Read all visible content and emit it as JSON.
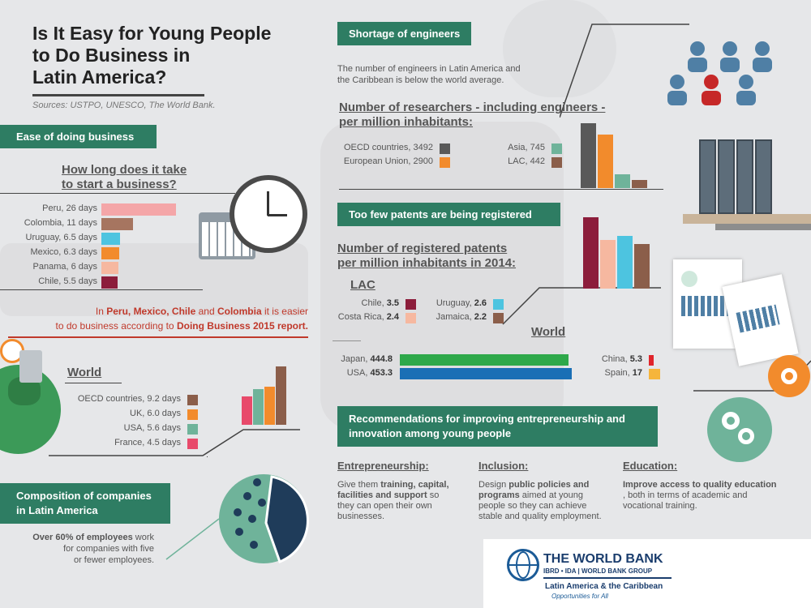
{
  "title": {
    "line1": "Is It Easy for Young People",
    "line2": "to Do Business in",
    "line3": "Latin America?",
    "sources": "Sources: USTPO, UNESCO, The World Bank."
  },
  "ease": {
    "tag": "Ease of doing business",
    "heading1": "How long does it take",
    "heading2": "to start a business?",
    "items": [
      {
        "label": "Peru, 26 days",
        "value": 26,
        "color": "#f4a6a8"
      },
      {
        "label": "Colombia, 11 days",
        "value": 11,
        "color": "#a67560"
      },
      {
        "label": "Uruguay, 6.5 days",
        "value": 6.5,
        "color": "#4dc4e0"
      },
      {
        "label": "Mexico, 6.3 days",
        "value": 6.3,
        "color": "#f28b2c"
      },
      {
        "label": "Panama, 6 days",
        "value": 6,
        "color": "#f6b8a0"
      },
      {
        "label": "Chile, 5.5 days",
        "value": 5.5,
        "color": "#8c1d3b"
      }
    ],
    "note1_pre": "In ",
    "note1_b1": "Peru, Mexico, Chile",
    "note1_mid": " and ",
    "note1_b2": "Colombia",
    "note1_post": " it is easier",
    "note2_pre": "to do business according to ",
    "note2_b": "Doing Business 2015 report."
  },
  "world": {
    "heading": "World",
    "items": [
      {
        "label": "OECD countries, 9.2 days",
        "value": 9.2,
        "color": "#8b5e4a"
      },
      {
        "label": "UK, 6.0 days",
        "value": 6.0,
        "color": "#f28b2c"
      },
      {
        "label": "USA, 5.6 days",
        "value": 5.6,
        "color": "#6fb39a"
      },
      {
        "label": "France, 4.5 days",
        "value": 4.5,
        "color": "#e84a6b"
      }
    ]
  },
  "composition": {
    "tag1": "Composition of companies",
    "tag2": "in Latin America",
    "text1_b": "Over 60% of employees",
    "text1": " work",
    "text2": "for companies with five",
    "text3": "or fewer employees.",
    "share": 60
  },
  "engineers": {
    "tag": "Shortage of engineers",
    "desc1": "The number of engineers in Latin America and",
    "desc2": "the Caribbean is below the world average."
  },
  "researchers": {
    "heading1": "Number of researchers - including engineers -",
    "heading2": "per million inhabitants:",
    "items": [
      {
        "label": "OECD countries, 3492",
        "value": 3492,
        "color": "#595959"
      },
      {
        "label": "European Union, 2900",
        "value": 2900,
        "color": "#f28b2c"
      },
      {
        "label": "Asia, 745",
        "value": 745,
        "color": "#6fb39a"
      },
      {
        "label": "LAC, 442",
        "value": 442,
        "color": "#8b5e4a"
      }
    ]
  },
  "patents": {
    "tag": "Too few patents are being registered",
    "heading1": "Number of registered patents",
    "heading2": "per million inhabitants in 2014:",
    "lac_heading": "LAC",
    "lac": [
      {
        "label": "Chile, ",
        "val": "3.5",
        "value": 3.5,
        "color": "#8c1d3b"
      },
      {
        "label": "Costa Rica, ",
        "val": "2.4",
        "value": 2.4,
        "color": "#f6b8a0"
      },
      {
        "label": "Uruguay, ",
        "val": "2.6",
        "value": 2.6,
        "color": "#4dc4e0"
      },
      {
        "label": "Jamaica, ",
        "val": "2.2",
        "value": 2.2,
        "color": "#8b5e4a"
      }
    ],
    "world_heading": "World",
    "world": [
      {
        "label": "Japan, ",
        "val": "444.8",
        "value": 444.8,
        "color": "#2ea84a"
      },
      {
        "label": "USA, ",
        "val": "453.3",
        "value": 453.3,
        "color": "#1a6fb5"
      },
      {
        "label": "China, ",
        "val": "5.3",
        "value": 5.3,
        "color": "#e0252b"
      },
      {
        "label": "Spain, ",
        "val": "17",
        "value": 17,
        "color": "#f6b53b"
      }
    ]
  },
  "recommendations": {
    "tag1": "Recommendations for improving entrepreneurship and",
    "tag2": "innovation among young people",
    "cols": [
      {
        "heading": "Entrepreneurship:",
        "l1_pre": "Give them ",
        "l1_b": "training, capital,",
        "l2_b": "facilities and support",
        "l2_post": " so",
        "l3": "they can open their own",
        "l4": "businesses."
      },
      {
        "heading": "Inclusion:",
        "l1_pre": "Design ",
        "l1_b": "public policies and",
        "l2_b": "programs",
        "l2_post": " aimed at young",
        "l3": "people so they can achieve",
        "l4": "stable and quality employment."
      },
      {
        "heading": "Education:",
        "l1_pre": "",
        "l1_b": "Improve access to quality education",
        "l2_b": "",
        "l2_post": ", both in terms of academic and",
        "l3": "vocational training.",
        "l4": ""
      }
    ]
  },
  "worldbank": {
    "name": "THE WORLD BANK",
    "sub1": "IBRD • IDA",
    "sub2": "WORLD BANK GROUP",
    "region": "Latin America & the Caribbean",
    "tagline": "Opportunities for All"
  }
}
